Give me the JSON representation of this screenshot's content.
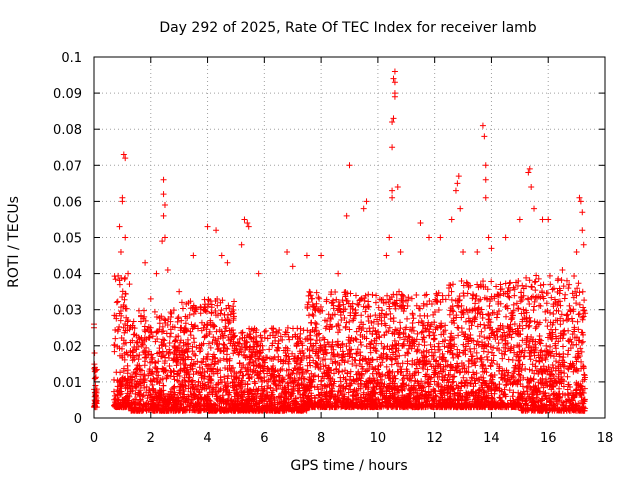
{
  "chart_data": {
    "type": "scatter",
    "title": "Day 292 of 2025, Rate Of TEC Index for receiver lamb",
    "xlabel": "GPS time / hours",
    "ylabel": "ROTI / TECUs",
    "xlim": [
      0,
      18
    ],
    "ylim": [
      0,
      0.1
    ],
    "grid": true,
    "marker": "+",
    "color": "#ff0000",
    "x_ticks": [
      "0",
      "2",
      "4",
      "6",
      "8",
      "10",
      "12",
      "14",
      "16",
      "18"
    ],
    "y_ticks": [
      "0",
      "0.01",
      "0.02",
      "0.03",
      "0.04",
      "0.05",
      "0.06",
      "0.07",
      "0.08",
      "0.09",
      "0.1"
    ],
    "series": [
      {
        "name": "ROTI",
        "points": [
          [
            0.0,
            0.026
          ],
          [
            0.0,
            0.025
          ],
          [
            0.02,
            0.018
          ],
          [
            0.03,
            0.014
          ],
          [
            0.04,
            0.011
          ],
          [
            0.05,
            0.009
          ],
          [
            0.05,
            0.007
          ],
          [
            0.06,
            0.006
          ],
          [
            0.07,
            0.005
          ],
          [
            0.08,
            0.004
          ],
          [
            0.1,
            0.008
          ],
          [
            0.1,
            0.003
          ],
          [
            0.9,
            0.053
          ],
          [
            1.0,
            0.061
          ],
          [
            1.0,
            0.06
          ],
          [
            1.05,
            0.073
          ],
          [
            1.1,
            0.072
          ],
          [
            1.1,
            0.05
          ],
          [
            0.95,
            0.046
          ],
          [
            1.2,
            0.04
          ],
          [
            1.8,
            0.043
          ],
          [
            2.0,
            0.033
          ],
          [
            2.2,
            0.04
          ],
          [
            2.45,
            0.066
          ],
          [
            2.45,
            0.062
          ],
          [
            2.5,
            0.059
          ],
          [
            2.45,
            0.056
          ],
          [
            2.5,
            0.05
          ],
          [
            2.4,
            0.049
          ],
          [
            2.6,
            0.041
          ],
          [
            3.0,
            0.035
          ],
          [
            3.5,
            0.045
          ],
          [
            4.0,
            0.053
          ],
          [
            4.3,
            0.052
          ],
          [
            4.5,
            0.045
          ],
          [
            4.7,
            0.043
          ],
          [
            5.3,
            0.055
          ],
          [
            5.4,
            0.054
          ],
          [
            5.45,
            0.053
          ],
          [
            5.2,
            0.048
          ],
          [
            5.8,
            0.04
          ],
          [
            6.8,
            0.046
          ],
          [
            7.0,
            0.042
          ],
          [
            7.5,
            0.045
          ],
          [
            8.0,
            0.045
          ],
          [
            8.6,
            0.04
          ],
          [
            9.0,
            0.07
          ],
          [
            8.9,
            0.056
          ],
          [
            9.5,
            0.058
          ],
          [
            9.6,
            0.06
          ],
          [
            10.3,
            0.045
          ],
          [
            10.4,
            0.05
          ],
          [
            10.5,
            0.063
          ],
          [
            10.5,
            0.061
          ],
          [
            10.5,
            0.082
          ],
          [
            10.55,
            0.083
          ],
          [
            10.5,
            0.075
          ],
          [
            10.6,
            0.09
          ],
          [
            10.6,
            0.089
          ],
          [
            10.55,
            0.094
          ],
          [
            10.6,
            0.096
          ],
          [
            10.6,
            0.093
          ],
          [
            10.7,
            0.064
          ],
          [
            10.8,
            0.046
          ],
          [
            11.5,
            0.054
          ],
          [
            11.8,
            0.05
          ],
          [
            12.2,
            0.05
          ],
          [
            12.6,
            0.055
          ],
          [
            12.8,
            0.065
          ],
          [
            12.85,
            0.067
          ],
          [
            12.75,
            0.063
          ],
          [
            12.9,
            0.058
          ],
          [
            13.0,
            0.046
          ],
          [
            13.5,
            0.046
          ],
          [
            13.7,
            0.081
          ],
          [
            13.75,
            0.078
          ],
          [
            13.8,
            0.07
          ],
          [
            13.8,
            0.066
          ],
          [
            13.8,
            0.061
          ],
          [
            13.9,
            0.05
          ],
          [
            14.0,
            0.047
          ],
          [
            14.5,
            0.05
          ],
          [
            15.0,
            0.055
          ],
          [
            15.3,
            0.068
          ],
          [
            15.35,
            0.069
          ],
          [
            15.4,
            0.064
          ],
          [
            15.5,
            0.058
          ],
          [
            15.8,
            0.055
          ],
          [
            16.0,
            0.055
          ],
          [
            16.5,
            0.041
          ],
          [
            17.0,
            0.046
          ],
          [
            17.1,
            0.061
          ],
          [
            17.15,
            0.06
          ],
          [
            17.2,
            0.057
          ],
          [
            17.2,
            0.052
          ],
          [
            17.25,
            0.048
          ]
        ]
      }
    ],
    "dense_band": [
      {
        "x_from": 0.0,
        "x_to": 0.1,
        "y_min": 0.003,
        "y_max": 0.015
      },
      {
        "x_from": 0.7,
        "x_to": 1.3,
        "y_min": 0.003,
        "y_max": 0.04
      },
      {
        "x_from": 1.3,
        "x_to": 3.0,
        "y_min": 0.002,
        "y_max": 0.03
      },
      {
        "x_from": 3.0,
        "x_to": 5.0,
        "y_min": 0.002,
        "y_max": 0.033
      },
      {
        "x_from": 5.0,
        "x_to": 7.5,
        "y_min": 0.002,
        "y_max": 0.025
      },
      {
        "x_from": 7.5,
        "x_to": 10.0,
        "y_min": 0.003,
        "y_max": 0.035
      },
      {
        "x_from": 10.0,
        "x_to": 12.5,
        "y_min": 0.003,
        "y_max": 0.035
      },
      {
        "x_from": 12.5,
        "x_to": 15.0,
        "y_min": 0.003,
        "y_max": 0.038
      },
      {
        "x_from": 15.0,
        "x_to": 17.3,
        "y_min": 0.002,
        "y_max": 0.04
      }
    ]
  }
}
